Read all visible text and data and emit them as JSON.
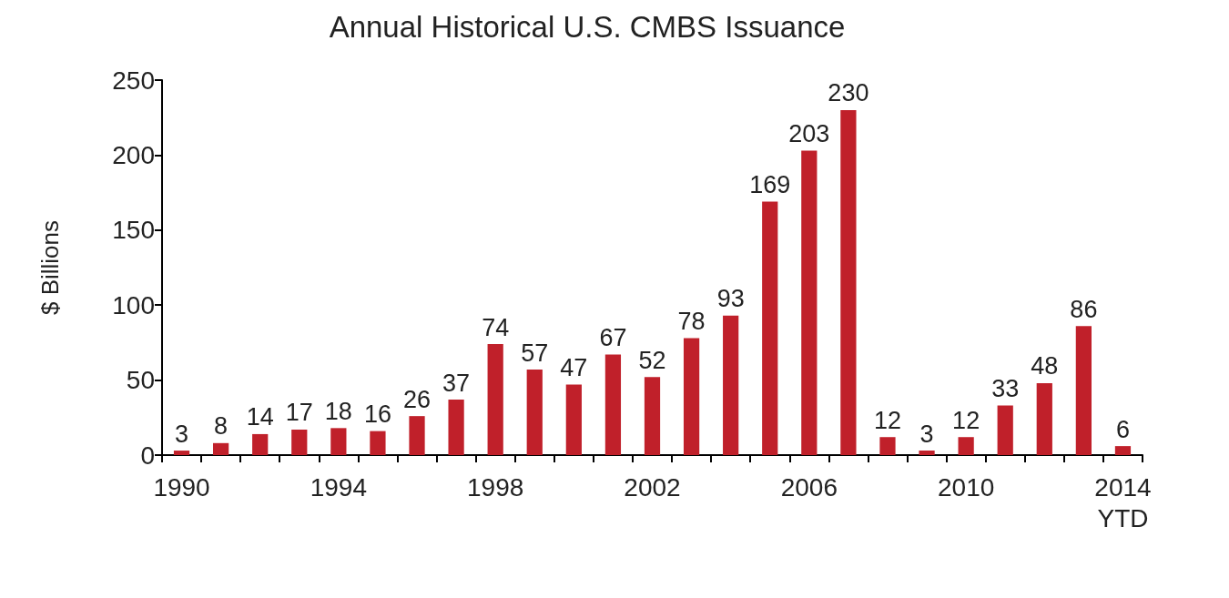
{
  "chart_data": {
    "type": "bar",
    "title": "Annual Historical U.S. CMBS Issuance",
    "ylabel": "$ Billions",
    "categories": [
      "1990",
      null,
      null,
      null,
      "1994",
      null,
      null,
      null,
      "1998",
      null,
      null,
      null,
      "2002",
      null,
      null,
      null,
      "2006",
      null,
      null,
      null,
      "2010",
      null,
      null,
      null,
      "2014\nYTD"
    ],
    "values": [
      3,
      8,
      14,
      17,
      18,
      16,
      26,
      37,
      74,
      57,
      47,
      67,
      52,
      78,
      93,
      169,
      203,
      230,
      12,
      3,
      12,
      33,
      48,
      86,
      6
    ],
    "color": "#c0202a",
    "ylim": [
      0,
      250
    ],
    "yticks": [
      0,
      50,
      100,
      150,
      200,
      250
    ],
    "grid": false,
    "data_labels": true
  }
}
